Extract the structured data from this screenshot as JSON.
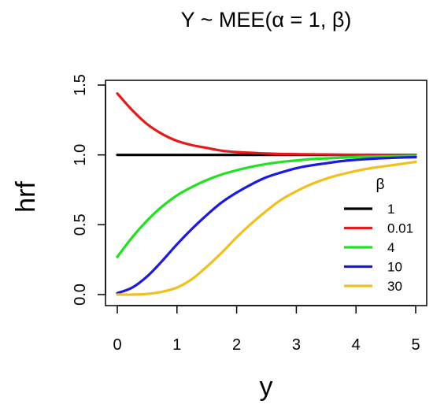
{
  "chart_data": {
    "type": "line",
    "title": "Y ~ MEE(α = 1, β)",
    "xlabel": "y",
    "ylabel": "hrf",
    "xlim": [
      0,
      5
    ],
    "ylim": [
      0,
      1.5
    ],
    "xticks": [
      "0",
      "1",
      "2",
      "3",
      "4",
      "5"
    ],
    "yticks": [
      "0.0",
      "0.5",
      "1.0",
      "1.5"
    ],
    "grid": false,
    "legend": {
      "title": "β",
      "position": "right"
    },
    "x": [
      0,
      0.25,
      0.5,
      0.75,
      1,
      1.25,
      1.5,
      1.75,
      2,
      2.25,
      2.5,
      2.75,
      3,
      3.25,
      3.5,
      3.75,
      4,
      4.25,
      4.5,
      4.75,
      5
    ],
    "series": [
      {
        "name": "1",
        "color": "#000000",
        "values": [
          1,
          1,
          1,
          1,
          1,
          1,
          1,
          1,
          1,
          1,
          1,
          1,
          1,
          1,
          1,
          1,
          1,
          1,
          1,
          1,
          1
        ]
      },
      {
        "name": "0.01",
        "color": "#e41a1c",
        "values": [
          1.44,
          1.32,
          1.22,
          1.15,
          1.1,
          1.07,
          1.05,
          1.03,
          1.02,
          1.015,
          1.01,
          1.007,
          1.005,
          1.004,
          1.003,
          1.002,
          1.001,
          1.001,
          1.0,
          1.0,
          1.0
        ]
      },
      {
        "name": "4",
        "color": "#22e022",
        "values": [
          0.27,
          0.41,
          0.53,
          0.63,
          0.71,
          0.77,
          0.82,
          0.86,
          0.89,
          0.915,
          0.935,
          0.95,
          0.96,
          0.97,
          0.975,
          0.98,
          0.985,
          0.988,
          0.99,
          0.992,
          0.994
        ]
      },
      {
        "name": "10",
        "color": "#1a1ae0",
        "values": [
          0.01,
          0.05,
          0.13,
          0.24,
          0.36,
          0.47,
          0.57,
          0.66,
          0.73,
          0.79,
          0.84,
          0.875,
          0.905,
          0.925,
          0.94,
          0.955,
          0.965,
          0.972,
          0.977,
          0.981,
          0.984
        ]
      },
      {
        "name": "30",
        "color": "#f0c020",
        "values": [
          0.0,
          0.0,
          0.005,
          0.02,
          0.05,
          0.11,
          0.2,
          0.3,
          0.41,
          0.51,
          0.6,
          0.68,
          0.74,
          0.79,
          0.83,
          0.86,
          0.885,
          0.905,
          0.92,
          0.935,
          0.95
        ]
      }
    ]
  }
}
